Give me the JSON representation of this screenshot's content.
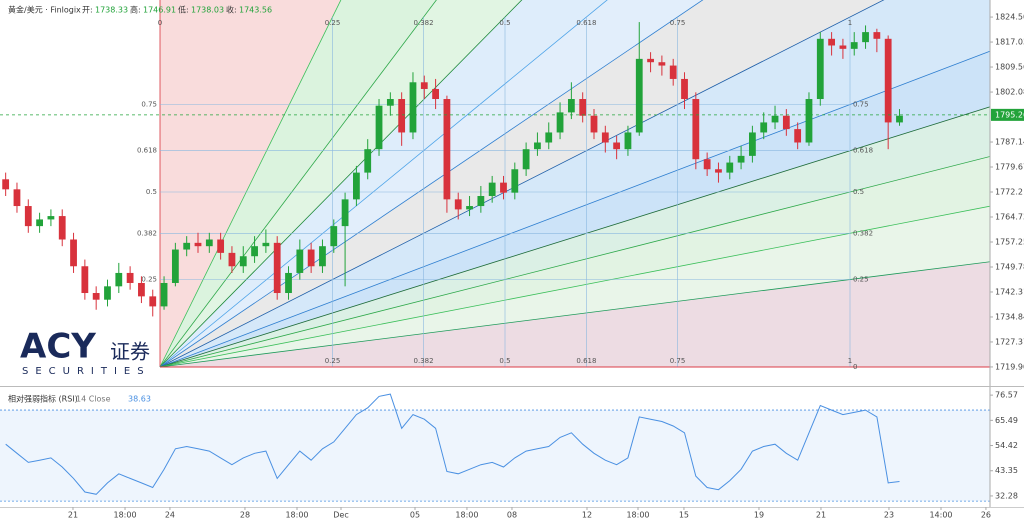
{
  "chart_data": [
    {
      "type": "candlestick",
      "title": "黄金/美元 · Finlogix",
      "info": [
        {
          "label": "开:",
          "value": 1738.33
        },
        {
          "label": "高:",
          "value": 1746.91
        },
        {
          "label": "低:",
          "value": 1738.03
        },
        {
          "label": "收:",
          "value": 1743.56
        }
      ],
      "open": [
        1776,
        1773,
        1768,
        1762,
        1764,
        1765,
        1758,
        1750,
        1742,
        1740,
        1744,
        1748,
        1745,
        1741,
        1738,
        1745,
        1755,
        1757,
        1756,
        1758,
        1754,
        1750,
        1753,
        1756,
        1757,
        1742,
        1748,
        1755,
        1750,
        1756,
        1762,
        1770,
        1778,
        1785,
        1798,
        1800,
        1790,
        1805,
        1803,
        1800,
        1770,
        1767,
        1768,
        1771,
        1775,
        1772,
        1779,
        1785,
        1787,
        1790,
        1796,
        1800,
        1795,
        1790,
        1787,
        1785,
        1790,
        1812,
        1811,
        1810,
        1806,
        1800,
        1782,
        1779,
        1778,
        1781,
        1783,
        1790,
        1793,
        1795,
        1791,
        1787,
        1800,
        1818,
        1816,
        1815,
        1817,
        1820,
        1818,
        1793
      ],
      "high": [
        1778,
        1775,
        1770,
        1766,
        1767,
        1767,
        1760,
        1752,
        1744,
        1746,
        1751,
        1750,
        1747,
        1743,
        1747,
        1757,
        1759,
        1760,
        1760,
        1760,
        1756,
        1756,
        1759,
        1761,
        1759,
        1750,
        1758,
        1757,
        1758,
        1764,
        1772,
        1780,
        1788,
        1800,
        1802,
        1802,
        1808,
        1807,
        1806,
        1801,
        1772,
        1771,
        1774,
        1777,
        1777,
        1781,
        1787,
        1790,
        1793,
        1799,
        1805,
        1802,
        1797,
        1792,
        1789,
        1792,
        1823,
        1814,
        1813,
        1812,
        1808,
        1802,
        1784,
        1781,
        1783,
        1786,
        1792,
        1796,
        1798,
        1797,
        1793,
        1802,
        1820,
        1820,
        1818,
        1820,
        1822,
        1821,
        1819,
        1797
      ],
      "low": [
        1771,
        1766,
        1760,
        1760,
        1762,
        1756,
        1748,
        1740,
        1737,
        1738,
        1742,
        1743,
        1739,
        1735,
        1737,
        1744,
        1753,
        1754,
        1754,
        1752,
        1748,
        1748,
        1751,
        1754,
        1740,
        1740,
        1746,
        1748,
        1748,
        1754,
        1744,
        1768,
        1776,
        1783,
        1795,
        1786,
        1788,
        1800,
        1797,
        1766,
        1764,
        1765,
        1766,
        1769,
        1770,
        1770,
        1777,
        1783,
        1785,
        1788,
        1794,
        1793,
        1788,
        1784,
        1782,
        1783,
        1789,
        1808,
        1807,
        1804,
        1797,
        1779,
        1777,
        1775,
        1776,
        1779,
        1781,
        1788,
        1791,
        1789,
        1785,
        1786,
        1798,
        1813,
        1812,
        1813,
        1815,
        1814,
        1785,
        1792
      ],
      "close": [
        1773,
        1768,
        1762,
        1764,
        1765,
        1758,
        1750,
        1742,
        1740,
        1744,
        1748,
        1745,
        1741,
        1738,
        1745,
        1755,
        1757,
        1756,
        1758,
        1754,
        1750,
        1753,
        1756,
        1757,
        1742,
        1748,
        1755,
        1750,
        1756,
        1762,
        1770,
        1778,
        1785,
        1798,
        1800,
        1790,
        1805,
        1803,
        1800,
        1770,
        1767,
        1768,
        1771,
        1775,
        1772,
        1779,
        1785,
        1787,
        1790,
        1796,
        1800,
        1795,
        1790,
        1787,
        1785,
        1790,
        1812,
        1811,
        1810,
        1806,
        1800,
        1782,
        1779,
        1778,
        1781,
        1783,
        1790,
        1793,
        1795,
        1791,
        1787,
        1800,
        1818,
        1816,
        1815,
        1817,
        1820,
        1818,
        1793,
        1795
      ],
      "up_color": "#22a33a",
      "down_color": "#d8323c",
      "xlim": [
        -0.5,
        87
      ],
      "xticks": [
        {
          "value": 5.95,
          "label": "21"
        },
        {
          "value": 10.55,
          "label": "18:00"
        },
        {
          "value": 14.52,
          "label": "24"
        },
        {
          "value": 21.15,
          "label": "28"
        },
        {
          "value": 25.75,
          "label": "18:00"
        },
        {
          "value": 29.64,
          "label": "Dec"
        },
        {
          "value": 36.18,
          "label": "05"
        },
        {
          "value": 40.77,
          "label": "18:00"
        },
        {
          "value": 44.75,
          "label": "08"
        },
        {
          "value": 51.38,
          "label": "12"
        },
        {
          "value": 55.89,
          "label": "18:00"
        },
        {
          "value": 59.95,
          "label": "15"
        },
        {
          "value": 66.58,
          "label": "19"
        },
        {
          "value": 72.06,
          "label": "21"
        },
        {
          "value": 78.07,
          "label": "23"
        },
        {
          "value": 82.67,
          "label": "14:00"
        },
        {
          "value": 86.64,
          "label": "26"
        }
      ],
      "ylim": [
        1714.5,
        1829.6
      ],
      "yticks": [
        {
          "value": 1824.5,
          "label": "1824.50"
        },
        1817.03,
        1809.56,
        1802.08,
        1787.14,
        1779.67,
        1772.2,
        1764.73,
        1757.25,
        1749.78,
        1742.31,
        1734.84,
        1727.37,
        {
          "value": 1719.9,
          "label": "1719.90"
        }
      ],
      "last_price": 1795.26,
      "last_price_color": "#22a33a",
      "fan_levels": [
        0,
        0.25,
        0.382,
        0.5,
        0.618,
        0.75,
        1
      ],
      "watermark": {
        "brand": "ACY",
        "cn": "证券",
        "sub": "SECURITIES"
      }
    },
    {
      "type": "line",
      "title": "相对强弱指标 (RSI)",
      "params": "14 Close",
      "color": "#4a90e2",
      "values": [
        55,
        51,
        47,
        48,
        49,
        45,
        40,
        34,
        33,
        38,
        42,
        40,
        38,
        36,
        44,
        53,
        54,
        53,
        52,
        49,
        46,
        49,
        51,
        52,
        40,
        46,
        52,
        48,
        53,
        56,
        62,
        68,
        71,
        76,
        77,
        62,
        68,
        66,
        62,
        43,
        42,
        44,
        46,
        47,
        45,
        49,
        52,
        53,
        54,
        58,
        60,
        55,
        51,
        48,
        46,
        49,
        67,
        66,
        65,
        63,
        60,
        41,
        36,
        35,
        39,
        44,
        52,
        54,
        55,
        51,
        48,
        60,
        72,
        70,
        68,
        69,
        70,
        67,
        38,
        38.63
      ],
      "ylim": [
        28.3,
        79.7
      ],
      "yticks": [
        76.57,
        65.49,
        54.42,
        43.35,
        32.28
      ],
      "bands": [
        70,
        30
      ]
    }
  ]
}
